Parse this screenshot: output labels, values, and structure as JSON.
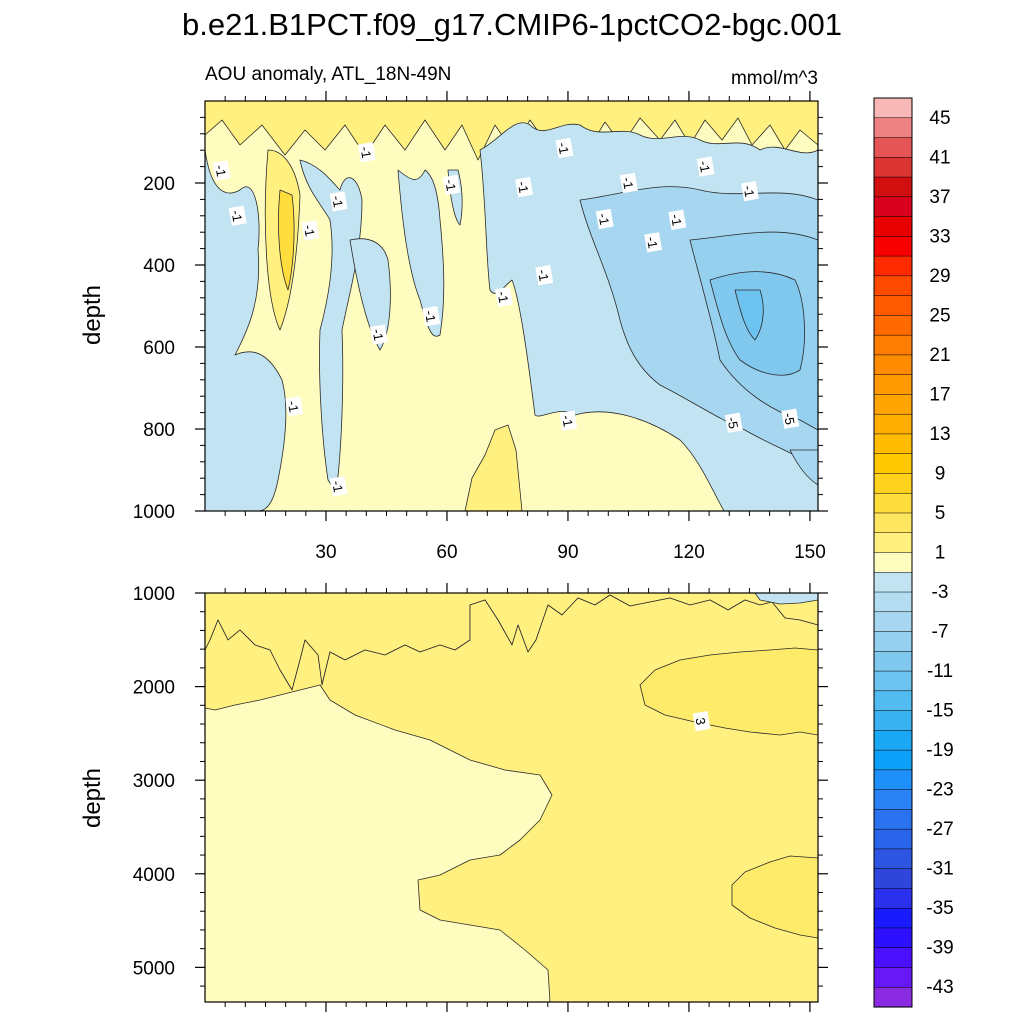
{
  "chart_data": {
    "type": "contour",
    "title": "b.e21.B1PCT.f09_g17.CMIP6-1pctCO2-bgc.001",
    "subtitle_left": "AOU anomaly, ATL_18N-49N",
    "subtitle_right": "mmol/m^3",
    "panels": [
      {
        "name": "upper",
        "xlim": [
          0,
          152
        ],
        "ylim": [
          0,
          1000
        ],
        "y_reversed": true,
        "xticks": [
          30,
          60,
          90,
          120,
          150
        ],
        "xtick_labels": [
          "30",
          "60",
          "90",
          "120",
          "150"
        ],
        "yticks": [
          200,
          400,
          600,
          800,
          1000
        ],
        "ytick_labels": [
          "200",
          "400",
          "600",
          "800",
          "1000"
        ],
        "ylabel": "depth",
        "contour_labels": [
          {
            "x": 4,
            "y": 170,
            "text": "-1"
          },
          {
            "x": 8,
            "y": 280,
            "text": "-1"
          },
          {
            "x": 26,
            "y": 316,
            "text": "-1"
          },
          {
            "x": 33,
            "y": 245,
            "text": "-1"
          },
          {
            "x": 40,
            "y": 125,
            "text": "-1"
          },
          {
            "x": 43,
            "y": 570,
            "text": "-1"
          },
          {
            "x": 56,
            "y": 525,
            "text": "-1"
          },
          {
            "x": 61,
            "y": 205,
            "text": "-1"
          },
          {
            "x": 74,
            "y": 478,
            "text": "-1"
          },
          {
            "x": 79,
            "y": 210,
            "text": "-1"
          },
          {
            "x": 84,
            "y": 425,
            "text": "-1"
          },
          {
            "x": 89,
            "y": 115,
            "text": "-1"
          },
          {
            "x": 99,
            "y": 288,
            "text": "-1"
          },
          {
            "x": 105,
            "y": 200,
            "text": "-1"
          },
          {
            "x": 111,
            "y": 345,
            "text": "-1"
          },
          {
            "x": 117,
            "y": 290,
            "text": "-1"
          },
          {
            "x": 124,
            "y": 160,
            "text": "-1"
          },
          {
            "x": 135,
            "y": 220,
            "text": "-1"
          },
          {
            "x": 22,
            "y": 745,
            "text": "-1"
          },
          {
            "x": 33,
            "y": 940,
            "text": "-1"
          },
          {
            "x": 90,
            "y": 780,
            "text": "-1"
          },
          {
            "x": 131,
            "y": 785,
            "text": "-5"
          },
          {
            "x": 145,
            "y": 775,
            "text": "-5"
          }
        ]
      },
      {
        "name": "lower",
        "xlim": [
          0,
          152
        ],
        "ylim": [
          1000,
          5370
        ],
        "y_reversed": true,
        "xticks": [
          30,
          60,
          90,
          120,
          150
        ],
        "yticks": [
          1000,
          2000,
          3000,
          4000,
          5000
        ],
        "ytick_labels": [
          "1000",
          "2000",
          "3000",
          "4000",
          "5000"
        ],
        "ylabel": "depth",
        "contour_labels": [
          {
            "x": 123,
            "y": 2370,
            "text": "3"
          }
        ]
      }
    ],
    "colorbar": {
      "levels": [
        45,
        43,
        41,
        39,
        37,
        35,
        33,
        31,
        29,
        27,
        25,
        23,
        21,
        19,
        17,
        15,
        13,
        11,
        9,
        7,
        5,
        3,
        1,
        -1,
        -3,
        -5,
        -7,
        -9,
        -11,
        -13,
        -15,
        -17,
        -19,
        -21,
        -23,
        -25,
        -27,
        -29,
        -31,
        -33,
        -35,
        -37,
        -39,
        -41,
        -43,
        -45
      ],
      "labels": [
        "45",
        "41",
        "37",
        "33",
        "29",
        "25",
        "21",
        "17",
        "13",
        "9",
        "5",
        "1",
        "-3",
        "-7",
        "-11",
        "-15",
        "-19",
        "-23",
        "-27",
        "-31",
        "-35",
        "-39",
        "-43"
      ],
      "colors": [
        "#f8b8b8",
        "#ee8282",
        "#e55555",
        "#dc3333",
        "#d20f0f",
        "#d8001c",
        "#e80000",
        "#f80000",
        "#ff2a00",
        "#ff4a00",
        "#ff5a00",
        "#ff6a00",
        "#ff7d00",
        "#ff8c00",
        "#ff9a00",
        "#ffa400",
        "#ffae00",
        "#ffbc00",
        "#ffc800",
        "#ffd21e",
        "#ffdd3c",
        "#ffe660",
        "#fff080",
        "#fffcc0",
        "#c2e4f2",
        "#b5ddf1",
        "#a7d7f0",
        "#95d0ef",
        "#80c8ee",
        "#6cc3ef",
        "#52bcf0",
        "#3ab2f2",
        "#1aa8f5",
        "#0ca0f8",
        "#1d90fa",
        "#2a82f4",
        "#2a72ef",
        "#2a64ea",
        "#2d55e2",
        "#3045da",
        "#2a30ee",
        "#1a1aff",
        "#2d10ff",
        "#4a10ff",
        "#6718f7",
        "#8a2be2"
      ]
    }
  }
}
